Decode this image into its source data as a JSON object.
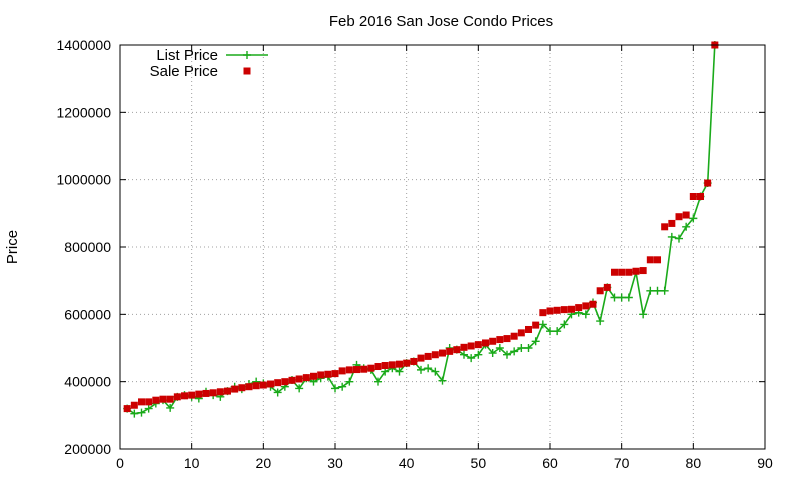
{
  "chart_data": {
    "type": "line",
    "title": "Feb 2016 San Jose Condo Prices",
    "xlabel": "",
    "ylabel": "Price",
    "xlim": [
      0,
      90
    ],
    "ylim": [
      200000,
      1400000
    ],
    "xticks": [
      0,
      10,
      20,
      30,
      40,
      50,
      60,
      70,
      80,
      90
    ],
    "yticks": [
      200000,
      400000,
      600000,
      800000,
      1000000,
      1200000,
      1400000
    ],
    "grid": true,
    "legend_position": "top-left",
    "series": [
      {
        "name": "List Price",
        "kind": "line+cross",
        "color": "#1aaa1a",
        "x": [
          1,
          2,
          3,
          4,
          5,
          6,
          7,
          8,
          9,
          10,
          11,
          12,
          13,
          14,
          15,
          16,
          17,
          18,
          19,
          20,
          21,
          22,
          23,
          24,
          25,
          26,
          27,
          28,
          29,
          30,
          31,
          32,
          33,
          34,
          35,
          36,
          37,
          38,
          39,
          40,
          41,
          42,
          43,
          44,
          45,
          46,
          47,
          48,
          49,
          50,
          51,
          52,
          53,
          54,
          55,
          56,
          57,
          58,
          59,
          60,
          61,
          62,
          63,
          64,
          65,
          66,
          67,
          68,
          69,
          70,
          71,
          72,
          73,
          74,
          75,
          76,
          77,
          78,
          79,
          80,
          81,
          82,
          83
        ],
        "values": [
          320000,
          305000,
          308000,
          320000,
          335000,
          345000,
          322000,
          355000,
          360000,
          355000,
          350000,
          370000,
          360000,
          355000,
          372000,
          385000,
          378000,
          393000,
          400000,
          395000,
          385000,
          368000,
          385000,
          405000,
          380000,
          410000,
          400000,
          410000,
          415000,
          380000,
          385000,
          400000,
          450000,
          440000,
          435000,
          400000,
          430000,
          440000,
          430000,
          455000,
          460000,
          435000,
          440000,
          430000,
          403000,
          500000,
          495000,
          480000,
          470000,
          480000,
          510000,
          485000,
          500000,
          480000,
          490000,
          500000,
          500000,
          520000,
          570000,
          550000,
          550000,
          570000,
          600000,
          605000,
          600000,
          635000,
          580000,
          680000,
          650000,
          650000,
          650000,
          725000,
          600000,
          670000,
          670000,
          670000,
          830000,
          825000,
          860000,
          885000,
          950000,
          990000,
          1400000
        ]
      },
      {
        "name": "Sale Price",
        "kind": "square",
        "color": "#cc0000",
        "x": [
          1,
          2,
          3,
          4,
          5,
          6,
          7,
          8,
          9,
          10,
          11,
          12,
          13,
          14,
          15,
          16,
          17,
          18,
          19,
          20,
          21,
          22,
          23,
          24,
          25,
          26,
          27,
          28,
          29,
          30,
          31,
          32,
          33,
          34,
          35,
          36,
          37,
          38,
          39,
          40,
          41,
          42,
          43,
          44,
          45,
          46,
          47,
          48,
          49,
          50,
          51,
          52,
          53,
          54,
          55,
          56,
          57,
          58,
          59,
          60,
          61,
          62,
          63,
          64,
          65,
          66,
          67,
          68,
          69,
          70,
          71,
          72,
          73,
          74,
          75,
          76,
          77,
          78,
          79,
          80,
          81,
          82,
          83
        ],
        "values": [
          320000,
          330000,
          340000,
          340000,
          345000,
          348000,
          348000,
          355000,
          358000,
          360000,
          363000,
          365000,
          367000,
          370000,
          372000,
          378000,
          382000,
          385000,
          388000,
          390000,
          393000,
          397000,
          400000,
          404000,
          408000,
          412000,
          416000,
          420000,
          422000,
          424000,
          432000,
          435000,
          436000,
          437000,
          440000,
          445000,
          448000,
          450000,
          452000,
          455000,
          460000,
          470000,
          475000,
          480000,
          485000,
          490000,
          495000,
          502000,
          506000,
          510000,
          515000,
          520000,
          525000,
          528000,
          535000,
          545000,
          555000,
          568000,
          605000,
          610000,
          612000,
          614000,
          615000,
          620000,
          625000,
          630000,
          670000,
          680000,
          725000,
          725000,
          725000,
          728000,
          730000,
          762000,
          762000,
          860000,
          870000,
          890000,
          895000,
          950000,
          950000,
          990000,
          1400000
        ]
      }
    ]
  }
}
